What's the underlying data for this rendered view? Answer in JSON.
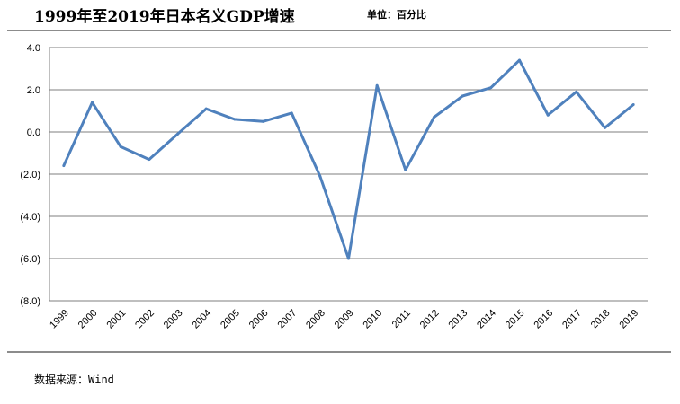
{
  "title": "1999年至2019年日本名义GDP增速",
  "unit": "单位：百分比",
  "source": "数据来源：Wind",
  "chart_data": {
    "type": "line",
    "categories": [
      "1999",
      "2000",
      "2001",
      "2002",
      "2003",
      "2004",
      "2005",
      "2006",
      "2007",
      "2008",
      "2009",
      "2010",
      "2011",
      "2012",
      "2013",
      "2014",
      "2015",
      "2016",
      "2017",
      "2018",
      "2019"
    ],
    "series": [
      {
        "values": [
          -1.6,
          1.4,
          -0.7,
          -1.3,
          -0.1,
          1.1,
          0.6,
          0.5,
          0.9,
          -2.1,
          -6.0,
          2.2,
          -1.8,
          0.7,
          1.7,
          2.1,
          3.4,
          0.8,
          1.9,
          0.2,
          1.3
        ]
      }
    ],
    "ylim": [
      -8,
      4
    ],
    "yticks": [
      4,
      2,
      0,
      -2,
      -4,
      -6,
      -8
    ],
    "ytick_labels": [
      "4.0",
      "2.0",
      "0.0",
      "(2.0)",
      "(4.0)",
      "(6.0)",
      "(8.0)"
    ],
    "grid": true,
    "line_color": "#4f81bd",
    "legend": "none"
  }
}
